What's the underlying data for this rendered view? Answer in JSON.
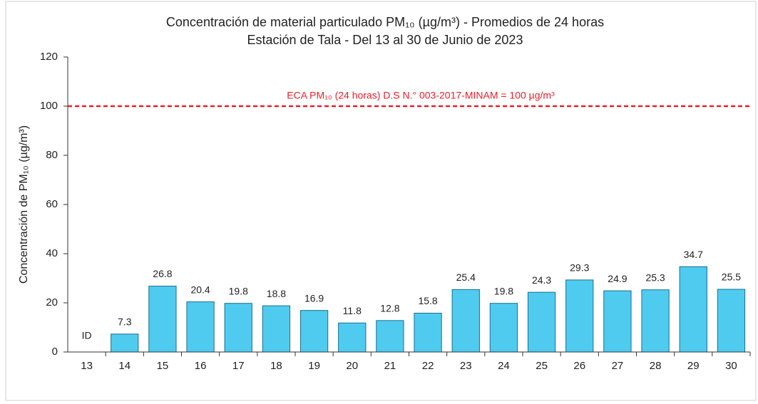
{
  "chart_data": {
    "type": "bar",
    "title": "Concentración de material particulado PM₁₀ (µg/m³) - Promedios de  24 horas",
    "subtitle": "Estación de Tala - Del 13 al 30 de Junio de 2023",
    "y_label": "Concentración de PM₁₀ (µg/m³)",
    "categories": [
      "13",
      "14",
      "15",
      "16",
      "17",
      "18",
      "19",
      "20",
      "21",
      "22",
      "23",
      "24",
      "25",
      "26",
      "27",
      "28",
      "29",
      "30"
    ],
    "values": [
      null,
      7.3,
      26.8,
      20.4,
      19.8,
      18.8,
      16.9,
      11.8,
      12.8,
      15.8,
      25.4,
      19.8,
      24.3,
      29.3,
      24.9,
      25.3,
      34.7,
      25.5
    ],
    "value_labels": [
      "ID",
      "7.3",
      "26.8",
      "20.4",
      "19.8",
      "18.8",
      "16.9",
      "11.8",
      "12.8",
      "15.8",
      "25.4",
      "19.8",
      "24.3",
      "29.3",
      "24.9",
      "25.3",
      "34.7",
      "25.5"
    ],
    "color": "#4fcbf0",
    "ylim": [
      0,
      120
    ],
    "yticks": [
      0,
      20,
      40,
      60,
      80,
      100,
      120
    ],
    "grid": false,
    "reference_line": {
      "value": 100,
      "label": "ECA PM₁₀ (24 horas) D.S N.° 003-2017-MINAM = 100 µg/m³",
      "color": "#e8202a"
    }
  }
}
